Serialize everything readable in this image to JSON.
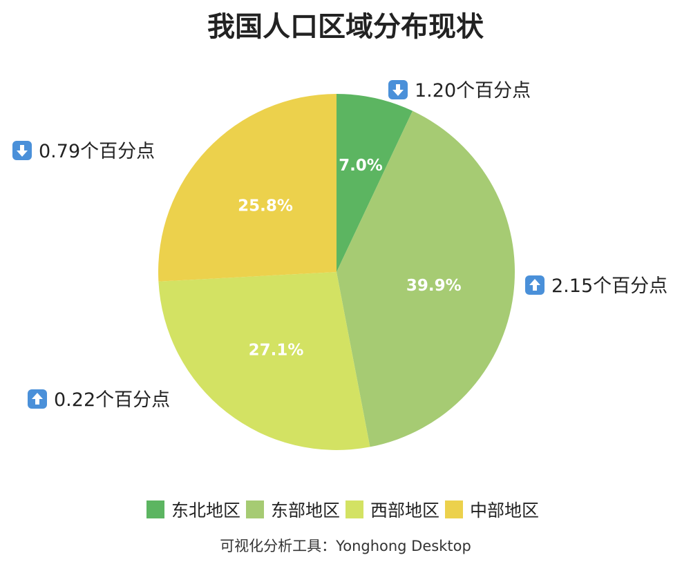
{
  "chart_data": {
    "type": "pie",
    "title": "我国人口区域分布现状",
    "categories": [
      "东北地区",
      "东部地区",
      "西部地区",
      "中部地区"
    ],
    "values": [
      7.0,
      39.9,
      27.1,
      25.8
    ],
    "slice_labels": [
      "7.0%",
      "39.9%",
      "27.1%",
      "25.8%"
    ],
    "colors": [
      "#5cb561",
      "#a6cb73",
      "#d3e263",
      "#ecd14c"
    ],
    "annotations": [
      {
        "direction": "down",
        "text": "1.20个百分点"
      },
      {
        "direction": "up",
        "text": "2.15个百分点"
      },
      {
        "direction": "up",
        "text": "0.22个百分点"
      },
      {
        "direction": "down",
        "text": "0.79个百分点"
      }
    ],
    "legend_position": "bottom"
  },
  "footer": "可视化分析工具：Yonghong Desktop"
}
